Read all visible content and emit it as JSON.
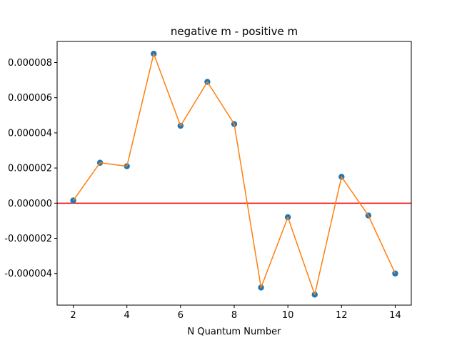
{
  "chart_data": {
    "type": "scatter",
    "title": "negative m - positive m",
    "xlabel": "N Quantum Number",
    "ylabel": "",
    "x": [
      2,
      3,
      4,
      5,
      6,
      7,
      8,
      9,
      10,
      11,
      12,
      13,
      14
    ],
    "y": [
      1.5e-07,
      2.3e-06,
      2.1e-06,
      8.5e-06,
      4.4e-06,
      6.9e-06,
      4.5e-06,
      -4.8e-06,
      -8e-07,
      -5.2e-06,
      1.5e-06,
      -7e-07,
      -4e-06
    ],
    "xlim": [
      1.4,
      14.6
    ],
    "ylim": [
      -5.8e-06,
      9.2e-06
    ],
    "xticks": [
      2,
      4,
      6,
      8,
      10,
      12,
      14
    ],
    "xtick_labels": [
      "2",
      "4",
      "6",
      "8",
      "10",
      "12",
      "14"
    ],
    "yticks": [
      -4e-06,
      -2e-06,
      0,
      2e-06,
      4e-06,
      6e-06,
      8e-06
    ],
    "ytick_labels": [
      "-0.000004",
      "-0.000002",
      "0.000000",
      "0.000002",
      "0.000004",
      "0.000006",
      "0.000008"
    ],
    "reference_line": {
      "y": 0,
      "color": "#ff0000"
    },
    "marker_color": "#1f77b4",
    "line_color": "#ff7f0e",
    "grid": false,
    "legend": "none"
  }
}
